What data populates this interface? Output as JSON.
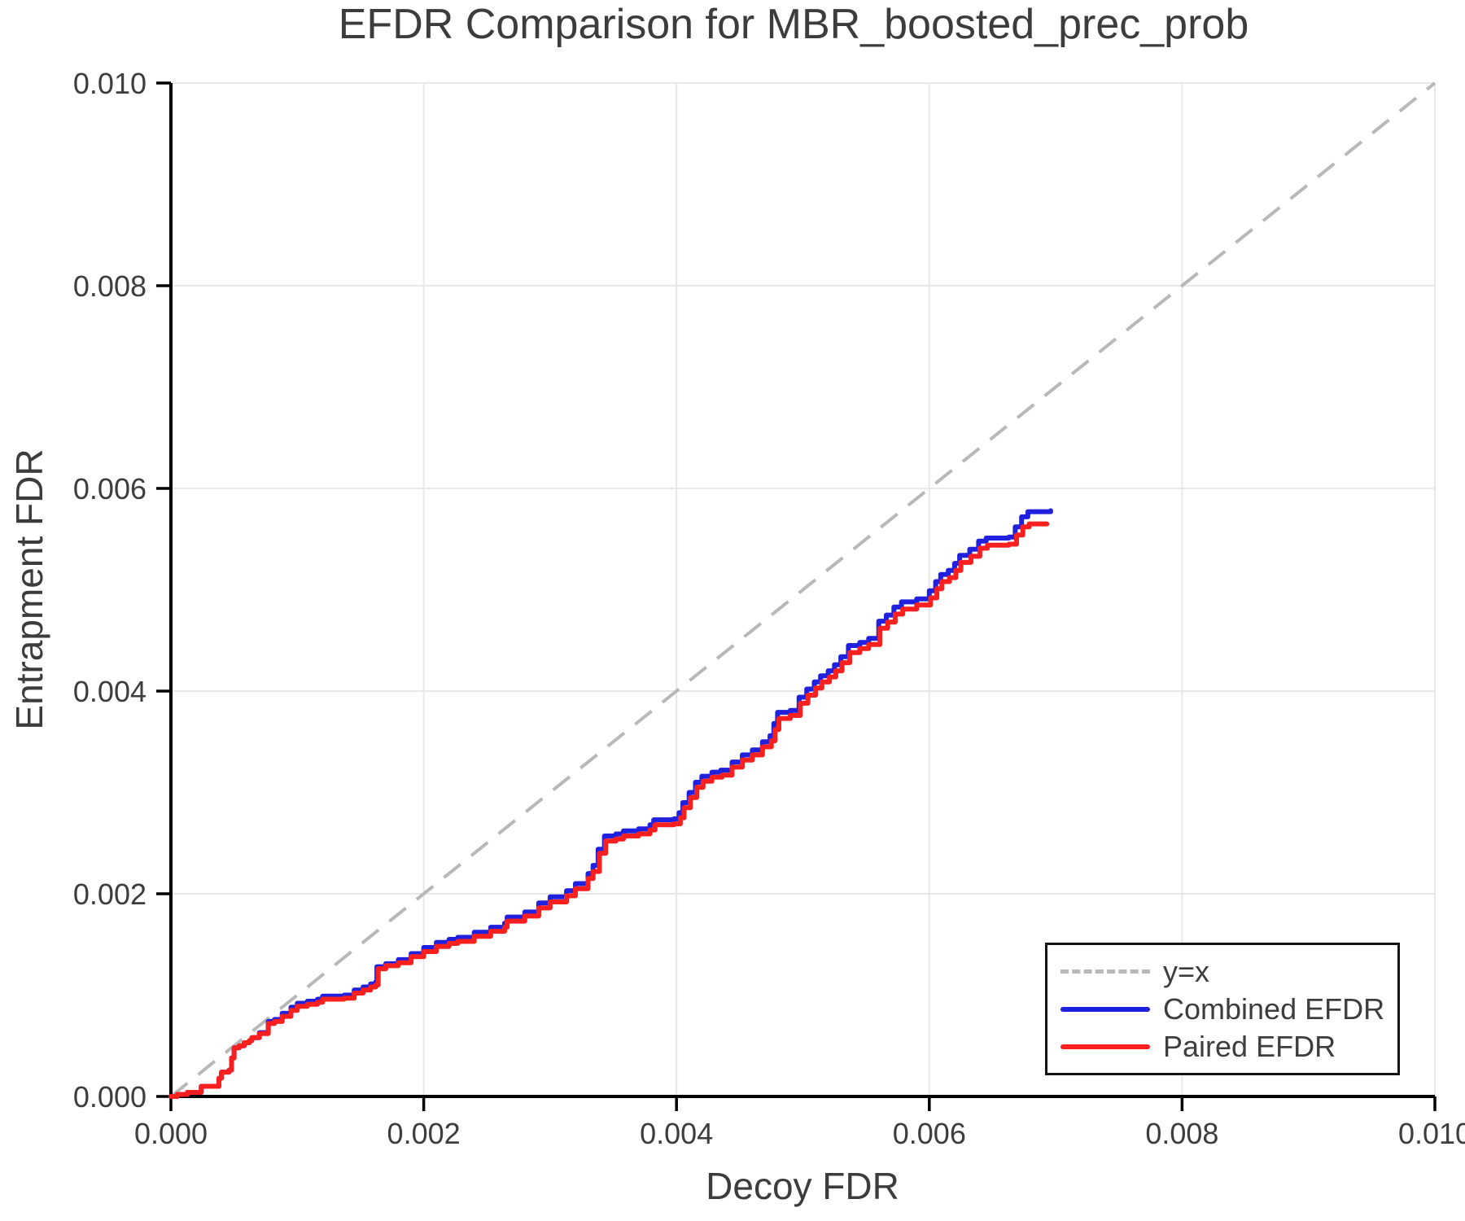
{
  "chart_data": {
    "type": "line",
    "title": "EFDR Comparison for MBR_boosted_prec_prob",
    "xlabel": "Decoy FDR",
    "ylabel": "Entrapment FDR",
    "xlim": [
      0.0,
      0.01
    ],
    "ylim": [
      0.0,
      0.01
    ],
    "x_ticks": [
      0.0,
      0.002,
      0.004,
      0.006,
      0.008,
      0.01
    ],
    "y_ticks": [
      0.0,
      0.002,
      0.004,
      0.006,
      0.008,
      0.01
    ],
    "x_tick_labels": [
      "0.000",
      "0.002",
      "0.004",
      "0.006",
      "0.008",
      "0.010"
    ],
    "y_tick_labels": [
      "0.000",
      "0.002",
      "0.004",
      "0.006",
      "0.008",
      "0.010"
    ],
    "grid": true,
    "legend_position": "lower right",
    "series": [
      {
        "name": "y=x",
        "style": "dashed",
        "color": "#b8b8b8",
        "points": [
          [
            0.0,
            0.0
          ],
          [
            0.01,
            0.01
          ]
        ]
      },
      {
        "name": "Combined EFDR",
        "style": "solid",
        "color": "#2020df",
        "points": [
          [
            0.0,
            0.0
          ],
          [
            5e-05,
            2e-05
          ],
          [
            0.0001,
            2e-05
          ],
          [
            0.00013,
            4e-05
          ],
          [
            0.00022,
            4e-05
          ],
          [
            0.00024,
            0.0001
          ],
          [
            0.00036,
            0.0001
          ],
          [
            0.00038,
            0.00018
          ],
          [
            0.0004,
            0.00024
          ],
          [
            0.00046,
            0.00026
          ],
          [
            0.00048,
            0.00038
          ],
          [
            0.0005,
            0.00048
          ],
          [
            0.00054,
            0.0005
          ],
          [
            0.00058,
            0.00053
          ],
          [
            0.00062,
            0.00055
          ],
          [
            0.00064,
            0.00058
          ],
          [
            0.0007,
            0.00063
          ],
          [
            0.00077,
            0.00074
          ],
          [
            0.00082,
            0.00076
          ],
          [
            0.00088,
            0.00082
          ],
          [
            0.00095,
            0.00088
          ],
          [
            0.001,
            0.00092
          ],
          [
            0.00108,
            0.00094
          ],
          [
            0.00116,
            0.00096
          ],
          [
            0.0012,
            0.00099
          ],
          [
            0.00137,
            0.001
          ],
          [
            0.00145,
            0.00105
          ],
          [
            0.00152,
            0.00108
          ],
          [
            0.00158,
            0.00111
          ],
          [
            0.00162,
            0.00113
          ],
          [
            0.00163,
            0.00128
          ],
          [
            0.0017,
            0.00131
          ],
          [
            0.0018,
            0.00135
          ],
          [
            0.0019,
            0.00141
          ],
          [
            0.002,
            0.00147
          ],
          [
            0.0021,
            0.00152
          ],
          [
            0.0022,
            0.00155
          ],
          [
            0.00227,
            0.00157
          ],
          [
            0.0024,
            0.00162
          ],
          [
            0.00253,
            0.00167
          ],
          [
            0.00264,
            0.00171
          ],
          [
            0.00266,
            0.00177
          ],
          [
            0.0028,
            0.00182
          ],
          [
            0.00291,
            0.00191
          ],
          [
            0.003,
            0.00197
          ],
          [
            0.00313,
            0.00203
          ],
          [
            0.0032,
            0.0021
          ],
          [
            0.0033,
            0.0022
          ],
          [
            0.00334,
            0.00228
          ],
          [
            0.00338,
            0.00244
          ],
          [
            0.00343,
            0.00257
          ],
          [
            0.00352,
            0.00259
          ],
          [
            0.00358,
            0.00262
          ],
          [
            0.0037,
            0.00264
          ],
          [
            0.00379,
            0.00268
          ],
          [
            0.00382,
            0.00273
          ],
          [
            0.00398,
            0.00274
          ],
          [
            0.00402,
            0.0028
          ],
          [
            0.00405,
            0.0029
          ],
          [
            0.0041,
            0.003
          ],
          [
            0.00415,
            0.0031
          ],
          [
            0.0042,
            0.00316
          ],
          [
            0.00428,
            0.0032
          ],
          [
            0.00435,
            0.00322
          ],
          [
            0.00444,
            0.0033
          ],
          [
            0.00452,
            0.00337
          ],
          [
            0.0046,
            0.00342
          ],
          [
            0.00468,
            0.0035
          ],
          [
            0.00474,
            0.00356
          ],
          [
            0.00477,
            0.00368
          ],
          [
            0.0048,
            0.00379
          ],
          [
            0.0049,
            0.00381
          ],
          [
            0.00497,
            0.00394
          ],
          [
            0.00503,
            0.00402
          ],
          [
            0.00509,
            0.00409
          ],
          [
            0.00514,
            0.00415
          ],
          [
            0.0052,
            0.0042
          ],
          [
            0.00525,
            0.00426
          ],
          [
            0.0053,
            0.00434
          ],
          [
            0.00536,
            0.00445
          ],
          [
            0.00545,
            0.00448
          ],
          [
            0.00552,
            0.00452
          ],
          [
            0.0056,
            0.00469
          ],
          [
            0.00566,
            0.00475
          ],
          [
            0.00572,
            0.00483
          ],
          [
            0.00578,
            0.00488
          ],
          [
            0.0059,
            0.00491
          ],
          [
            0.006,
            0.00499
          ],
          [
            0.00605,
            0.00508
          ],
          [
            0.00609,
            0.00515
          ],
          [
            0.00615,
            0.00519
          ],
          [
            0.0062,
            0.00526
          ],
          [
            0.00624,
            0.00534
          ],
          [
            0.00632,
            0.0054
          ],
          [
            0.00639,
            0.00548
          ],
          [
            0.00645,
            0.00551
          ],
          [
            0.00663,
            0.00552
          ],
          [
            0.00668,
            0.00562
          ],
          [
            0.00673,
            0.00572
          ],
          [
            0.00678,
            0.00577
          ],
          [
            0.00696,
            0.00578
          ]
        ]
      },
      {
        "name": "Paired EFDR",
        "style": "solid",
        "color": "#fb2020",
        "points": [
          [
            0.0,
            0.0
          ],
          [
            5e-05,
            2e-05
          ],
          [
            0.0001,
            2e-05
          ],
          [
            0.00013,
            4e-05
          ],
          [
            0.00022,
            4e-05
          ],
          [
            0.00024,
            0.0001
          ],
          [
            0.00036,
            0.0001
          ],
          [
            0.00038,
            0.00018
          ],
          [
            0.0004,
            0.00024
          ],
          [
            0.00046,
            0.00026
          ],
          [
            0.00048,
            0.00038
          ],
          [
            0.0005,
            0.00048
          ],
          [
            0.00054,
            0.0005
          ],
          [
            0.00058,
            0.00053
          ],
          [
            0.00062,
            0.00055
          ],
          [
            0.00064,
            0.00058
          ],
          [
            0.0007,
            0.00062
          ],
          [
            0.00077,
            0.00072
          ],
          [
            0.00082,
            0.00074
          ],
          [
            0.00088,
            0.00079
          ],
          [
            0.00095,
            0.00085
          ],
          [
            0.001,
            0.00089
          ],
          [
            0.00108,
            0.00091
          ],
          [
            0.00116,
            0.00093
          ],
          [
            0.0012,
            0.00096
          ],
          [
            0.00137,
            0.00097
          ],
          [
            0.00145,
            0.00102
          ],
          [
            0.00152,
            0.00105
          ],
          [
            0.00158,
            0.00108
          ],
          [
            0.00162,
            0.0011
          ],
          [
            0.00164,
            0.00126
          ],
          [
            0.0017,
            0.00129
          ],
          [
            0.0018,
            0.00132
          ],
          [
            0.0019,
            0.00138
          ],
          [
            0.002,
            0.00143
          ],
          [
            0.0021,
            0.00148
          ],
          [
            0.0022,
            0.00151
          ],
          [
            0.00227,
            0.00153
          ],
          [
            0.0024,
            0.00158
          ],
          [
            0.00253,
            0.00163
          ],
          [
            0.00264,
            0.00167
          ],
          [
            0.00266,
            0.00173
          ],
          [
            0.0028,
            0.00178
          ],
          [
            0.00291,
            0.00186
          ],
          [
            0.003,
            0.00192
          ],
          [
            0.00313,
            0.00198
          ],
          [
            0.0032,
            0.00205
          ],
          [
            0.0033,
            0.00215
          ],
          [
            0.00334,
            0.00222
          ],
          [
            0.00339,
            0.0024
          ],
          [
            0.00344,
            0.00252
          ],
          [
            0.00352,
            0.00254
          ],
          [
            0.00358,
            0.00257
          ],
          [
            0.0037,
            0.00259
          ],
          [
            0.00379,
            0.00263
          ],
          [
            0.00383,
            0.00268
          ],
          [
            0.00398,
            0.00269
          ],
          [
            0.00403,
            0.00275
          ],
          [
            0.00406,
            0.00285
          ],
          [
            0.00411,
            0.00295
          ],
          [
            0.00416,
            0.00305
          ],
          [
            0.00421,
            0.00311
          ],
          [
            0.00428,
            0.00315
          ],
          [
            0.00436,
            0.00317
          ],
          [
            0.00444,
            0.00325
          ],
          [
            0.00452,
            0.00332
          ],
          [
            0.0046,
            0.00337
          ],
          [
            0.00468,
            0.00345
          ],
          [
            0.00475,
            0.00351
          ],
          [
            0.00478,
            0.00362
          ],
          [
            0.00481,
            0.00373
          ],
          [
            0.0049,
            0.00376
          ],
          [
            0.00498,
            0.00388
          ],
          [
            0.00504,
            0.00396
          ],
          [
            0.0051,
            0.00403
          ],
          [
            0.00515,
            0.00409
          ],
          [
            0.00521,
            0.00414
          ],
          [
            0.00526,
            0.0042
          ],
          [
            0.00531,
            0.00428
          ],
          [
            0.00537,
            0.00438
          ],
          [
            0.00545,
            0.00442
          ],
          [
            0.00552,
            0.00446
          ],
          [
            0.00561,
            0.00462
          ],
          [
            0.00567,
            0.00468
          ],
          [
            0.00573,
            0.00476
          ],
          [
            0.00579,
            0.00481
          ],
          [
            0.0059,
            0.00485
          ],
          [
            0.00601,
            0.00492
          ],
          [
            0.00606,
            0.00501
          ],
          [
            0.0061,
            0.00508
          ],
          [
            0.00616,
            0.00512
          ],
          [
            0.00621,
            0.00519
          ],
          [
            0.00625,
            0.00527
          ],
          [
            0.00633,
            0.00533
          ],
          [
            0.0064,
            0.00541
          ],
          [
            0.00646,
            0.00544
          ],
          [
            0.00663,
            0.00545
          ],
          [
            0.00669,
            0.00554
          ],
          [
            0.00674,
            0.00562
          ],
          [
            0.00679,
            0.00565
          ],
          [
            0.00693,
            0.00565
          ]
        ]
      }
    ],
    "style": {
      "grid_color": "#e8e8e8",
      "spine_color": "#000000",
      "minor_spine_color": "#e6e6e6",
      "text_color": "#3c3c3c",
      "tick_label_color": "#3d3d3d",
      "legend_border_color": "#141414"
    }
  }
}
